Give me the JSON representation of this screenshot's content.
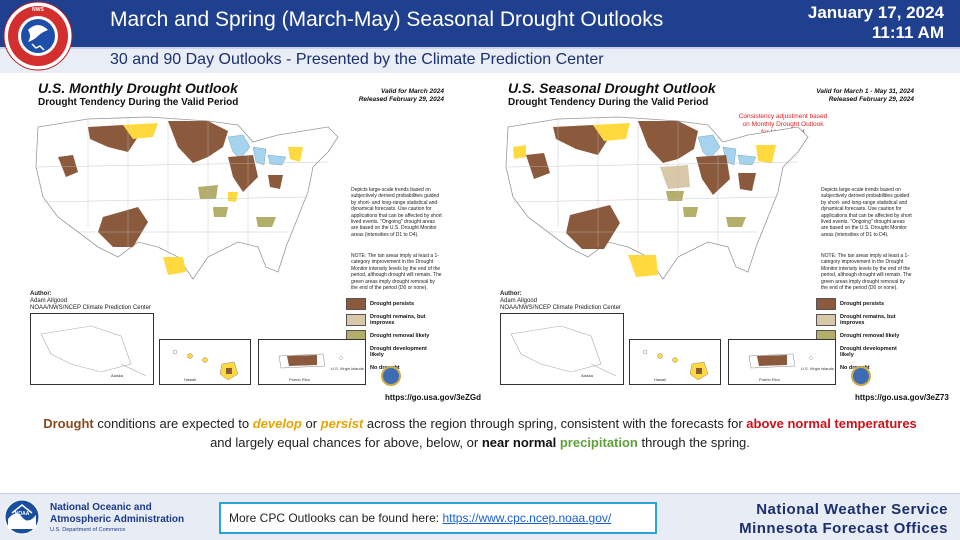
{
  "header": {
    "title": "March and Spring (March-May) Seasonal Drought Outlooks",
    "date": "January 17, 2024",
    "time": "11:11 AM",
    "subtitle": "30 and 90 Day Outlooks - Presented by the Climate Prediction Center",
    "logo_text": "NATIONAL WEATHER SERVICE"
  },
  "colors": {
    "header_bg": "#1f3f8f",
    "persist": "#8b5a3c",
    "remain_improve": "#d9c8a8",
    "removal": "#b3ae6a",
    "development": "#ffd93d",
    "water": "#a6d4ee"
  },
  "maps": [
    {
      "title": "U.S. Monthly Drought Outlook",
      "subtitle": "Drought Tendency During the Valid Period",
      "valid": "Valid for March 2024",
      "released": "Released February 29, 2024",
      "note": "",
      "url": "https://go.usa.gov/3eZGd"
    },
    {
      "title": "U.S. Seasonal Drought Outlook",
      "subtitle": "Drought Tendency During the Valid Period",
      "valid": "Valid for March 1 - May 31, 2024",
      "released": "Released February 29, 2024",
      "note": "Consistency adjustment based on Monthly Drought Outlook for March 2024",
      "url": "https://go.usa.gov/3eZ73"
    }
  ],
  "legend": {
    "description": "Depicts large-scale trends based on subjectively derived probabilities guided by short- and long-range statistical and dynamical forecasts. Use caution for applications that can be affected by short lived events. \"Ongoing\" drought areas are based on the U.S. Drought Monitor areas (intensities of D1 to D4).",
    "note": "NOTE: The tan areas imply at least a 1-category improvement in the Drought Monitor intensity levels by the end of the period, although drought will remain. The green areas imply drought removal by the end of the period (D0 or none).",
    "items": [
      {
        "label": "Drought persists",
        "color_key": "persist"
      },
      {
        "label": "Drought remains, but improves",
        "color_key": "remain_improve"
      },
      {
        "label": "Drought removal likely",
        "color_key": "removal"
      },
      {
        "label": "Drought development likely",
        "color_key": "development"
      },
      {
        "label": "No drought",
        "color_key": "none"
      }
    ],
    "author_heading": "Author:",
    "author_name": "Adam Allgood",
    "author_org": "NOAA/NWS/NCEP Climate Prediction Center",
    "inset_labels": [
      "Alaska",
      "Hawaii",
      "Puerto Rico",
      "U.S. Virgin Islands"
    ]
  },
  "summary": {
    "w1": "Drought",
    "w2": " conditions are expected to ",
    "w3": "develop",
    "w4": " or ",
    "w5": "persist",
    "w6": " across the region through spring, consistent with the forecasts for ",
    "w7": "above normal temperatures",
    "w8": " and largely equal chances for above, below, or ",
    "w9": "near normal",
    "w10": " ",
    "w11": "precipitation",
    "w12": " through the spring."
  },
  "footer": {
    "noaa_line1": "National Oceanic and",
    "noaa_line2": "Atmospheric Administration",
    "noaa_dept": "U.S. Department of Commerce",
    "cpc_text": "More CPC Outlooks can be found here: ",
    "cpc_link": "https://www.cpc.ncep.noaa.gov/",
    "nws_line1": "National Weather Service",
    "nws_line2": "Minnesota Forecast Offices"
  }
}
